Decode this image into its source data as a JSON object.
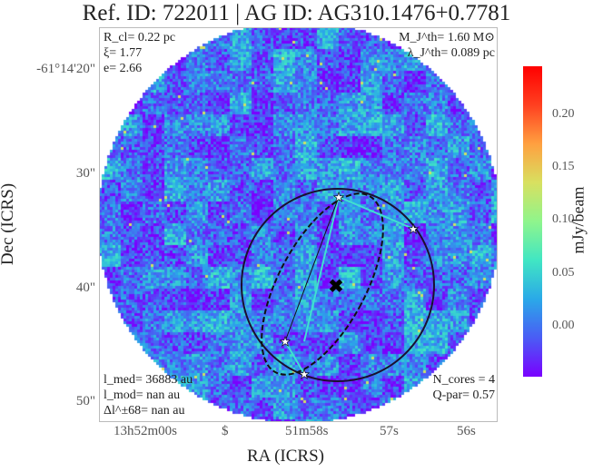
{
  "title": "Ref. ID: 722011 | AG ID: AG310.1476+0.7781",
  "annotations": {
    "top_left": [
      "R_cl= 0.22 pc",
      "ξ= 1.77",
      "e= 2.66"
    ],
    "top_right": [
      "M_J^th= 1.60 M⊙",
      "λ_J^th= 0.089 pc"
    ],
    "bottom_left": [
      "l_med= 36883 au",
      "l_mod= nan au",
      "Δl^±68= nan au"
    ],
    "bottom_right": [
      "N_cores = 4",
      "Q-par= 0.57"
    ]
  },
  "chart_data": {
    "type": "heatmap",
    "xlabel": "RA (ICRS)",
    "ylabel": "Dec (ICRS)",
    "x_ticks": [
      "13h52m00s",
      "$",
      "51m58s",
      "57s",
      "56s"
    ],
    "y_ticks": [
      "-61°14'20\"",
      "30\"",
      "40\"",
      "50\""
    ],
    "colorbar": {
      "label": "mJy/beam",
      "ticks": [
        "0.20",
        "0.15",
        "0.10",
        "0.05",
        "0.00"
      ],
      "range": [
        -0.047,
        0.247
      ],
      "colormap": "rainbow"
    },
    "n_cores": 4,
    "colors": {
      "circle": "#1a1030",
      "mst": "#40e0d0",
      "marker": "#000000"
    }
  }
}
